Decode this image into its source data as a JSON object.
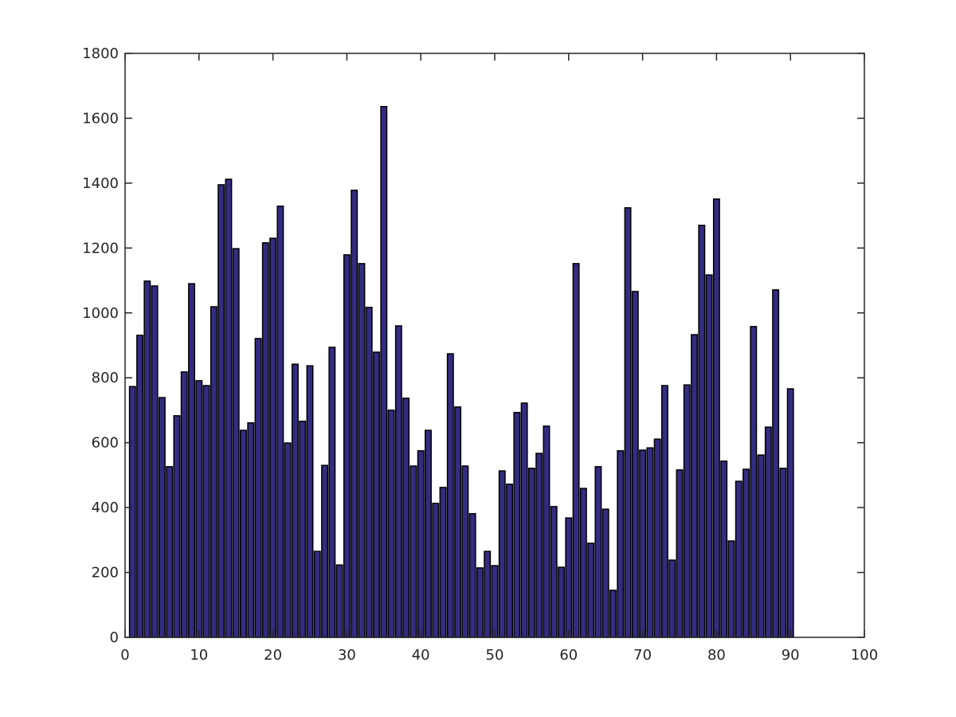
{
  "chart_data": {
    "type": "bar",
    "x": [
      1,
      2,
      3,
      4,
      5,
      6,
      7,
      8,
      9,
      10,
      11,
      12,
      13,
      14,
      15,
      16,
      17,
      18,
      19,
      20,
      21,
      22,
      23,
      24,
      25,
      26,
      27,
      28,
      29,
      30,
      31,
      32,
      33,
      34,
      35,
      36,
      37,
      38,
      39,
      40,
      41,
      42,
      43,
      44,
      45,
      46,
      47,
      48,
      49,
      50,
      51,
      52,
      53,
      54,
      55,
      56,
      57,
      58,
      59,
      60,
      61,
      62,
      63,
      64,
      65,
      66,
      67,
      68,
      69,
      70,
      71,
      72,
      73,
      74,
      75,
      76,
      77,
      78,
      79,
      80,
      81,
      82,
      83,
      84,
      85,
      86,
      87,
      88,
      89,
      90
    ],
    "values": [
      773,
      931,
      1098,
      1083,
      739,
      526,
      683,
      818,
      1090,
      791,
      776,
      1019,
      1395,
      1412,
      1198,
      638,
      661,
      921,
      1216,
      1230,
      1329,
      599,
      842,
      666,
      837,
      265,
      530,
      894,
      223,
      1179,
      1378,
      1152,
      1017,
      879,
      1636,
      700,
      960,
      737,
      528,
      575,
      638,
      413,
      462,
      874,
      710,
      528,
      381,
      214,
      265,
      221,
      513,
      472,
      693,
      722,
      521,
      567,
      651,
      403,
      216,
      368,
      1152,
      459,
      290,
      526,
      395,
      145,
      575,
      1324,
      1066,
      577,
      584,
      611,
      776,
      238,
      516,
      778,
      933,
      1270,
      1117,
      1351,
      543,
      297,
      481,
      518,
      958,
      562,
      648,
      1071,
      521,
      766
    ],
    "color": "#332c80",
    "xlim": [
      0,
      100
    ],
    "xticks": [
      0,
      10,
      20,
      30,
      40,
      50,
      60,
      70,
      80,
      90,
      100
    ],
    "ylim": [
      0,
      1800
    ],
    "yticks": [
      0,
      200,
      400,
      600,
      800,
      1000,
      1200,
      1400,
      1600,
      1800
    ]
  }
}
